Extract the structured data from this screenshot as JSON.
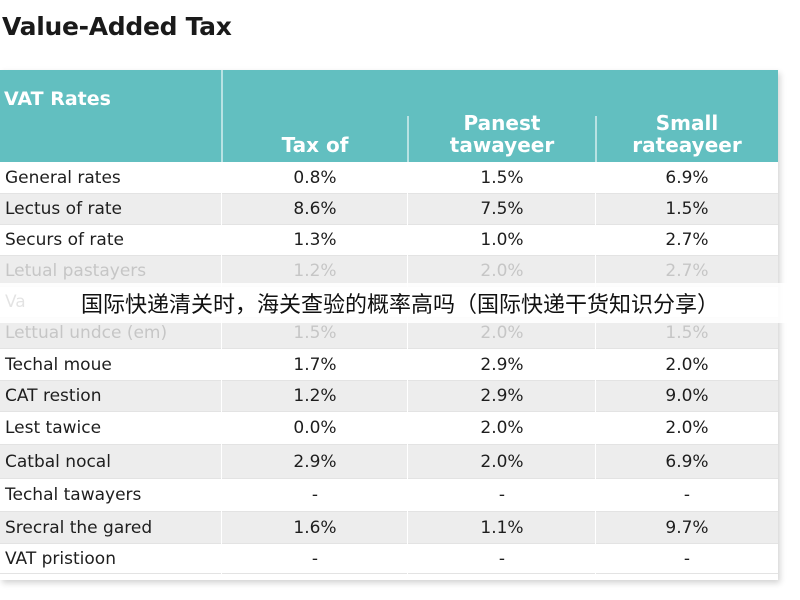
{
  "page": {
    "title": "Value-Added Tax"
  },
  "table": {
    "header": {
      "label": "VAT Rates",
      "col1": "Tax of",
      "col2": "Panest\ntawayeer",
      "col3": "Small\nrateayeer"
    },
    "rows": [
      {
        "name": "General rates",
        "v1": "0.8%",
        "v2": "1.5%",
        "v3": "6.9%"
      },
      {
        "name": "Lectus of rate",
        "v1": "8.6%",
        "v2": "7.5%",
        "v3": "1.5%"
      },
      {
        "name": "Securs of rate",
        "v1": "1.3%",
        "v2": "1.0%",
        "v3": "2.7%"
      },
      {
        "name": "Letual pastayers",
        "v1": "1.2%",
        "v2": "2.0%",
        "v3": "2.7%"
      },
      {
        "name": "Va",
        "v1": "",
        "v2": "",
        "v3": ""
      },
      {
        "name": "Lettual undce (em)",
        "v1": "1.5%",
        "v2": "2.0%",
        "v3": "1.5%"
      },
      {
        "name": "Techal moue",
        "v1": "1.7%",
        "v2": "2.9%",
        "v3": "2.0%"
      },
      {
        "name": "CAT restion",
        "v1": "1.2%",
        "v2": "2.9%",
        "v3": "9.0%"
      },
      {
        "name": "Lest tawice",
        "v1": "0.0%",
        "v2": "2.0%",
        "v3": "2.0%"
      },
      {
        "name": "Catbal nocal",
        "v1": "2.9%",
        "v2": "2.0%",
        "v3": "6.9%"
      },
      {
        "name": "Techal tawayers",
        "v1": "-",
        "v2": "-",
        "v3": "-"
      },
      {
        "name": "Srecral the gared",
        "v1": "1.6%",
        "v2": "1.1%",
        "v3": "9.7%"
      },
      {
        "name": "VAT pristioon",
        "v1": "-",
        "v2": "-",
        "v3": "-"
      }
    ]
  },
  "overlay": {
    "text": "国际快递清关时，海关查验的概率高吗（国际快递干货知识分享）"
  },
  "colors": {
    "header_bg": "#62bfc0",
    "alt_row_bg": "#ededed",
    "faded_text": "#c6c6c6"
  }
}
